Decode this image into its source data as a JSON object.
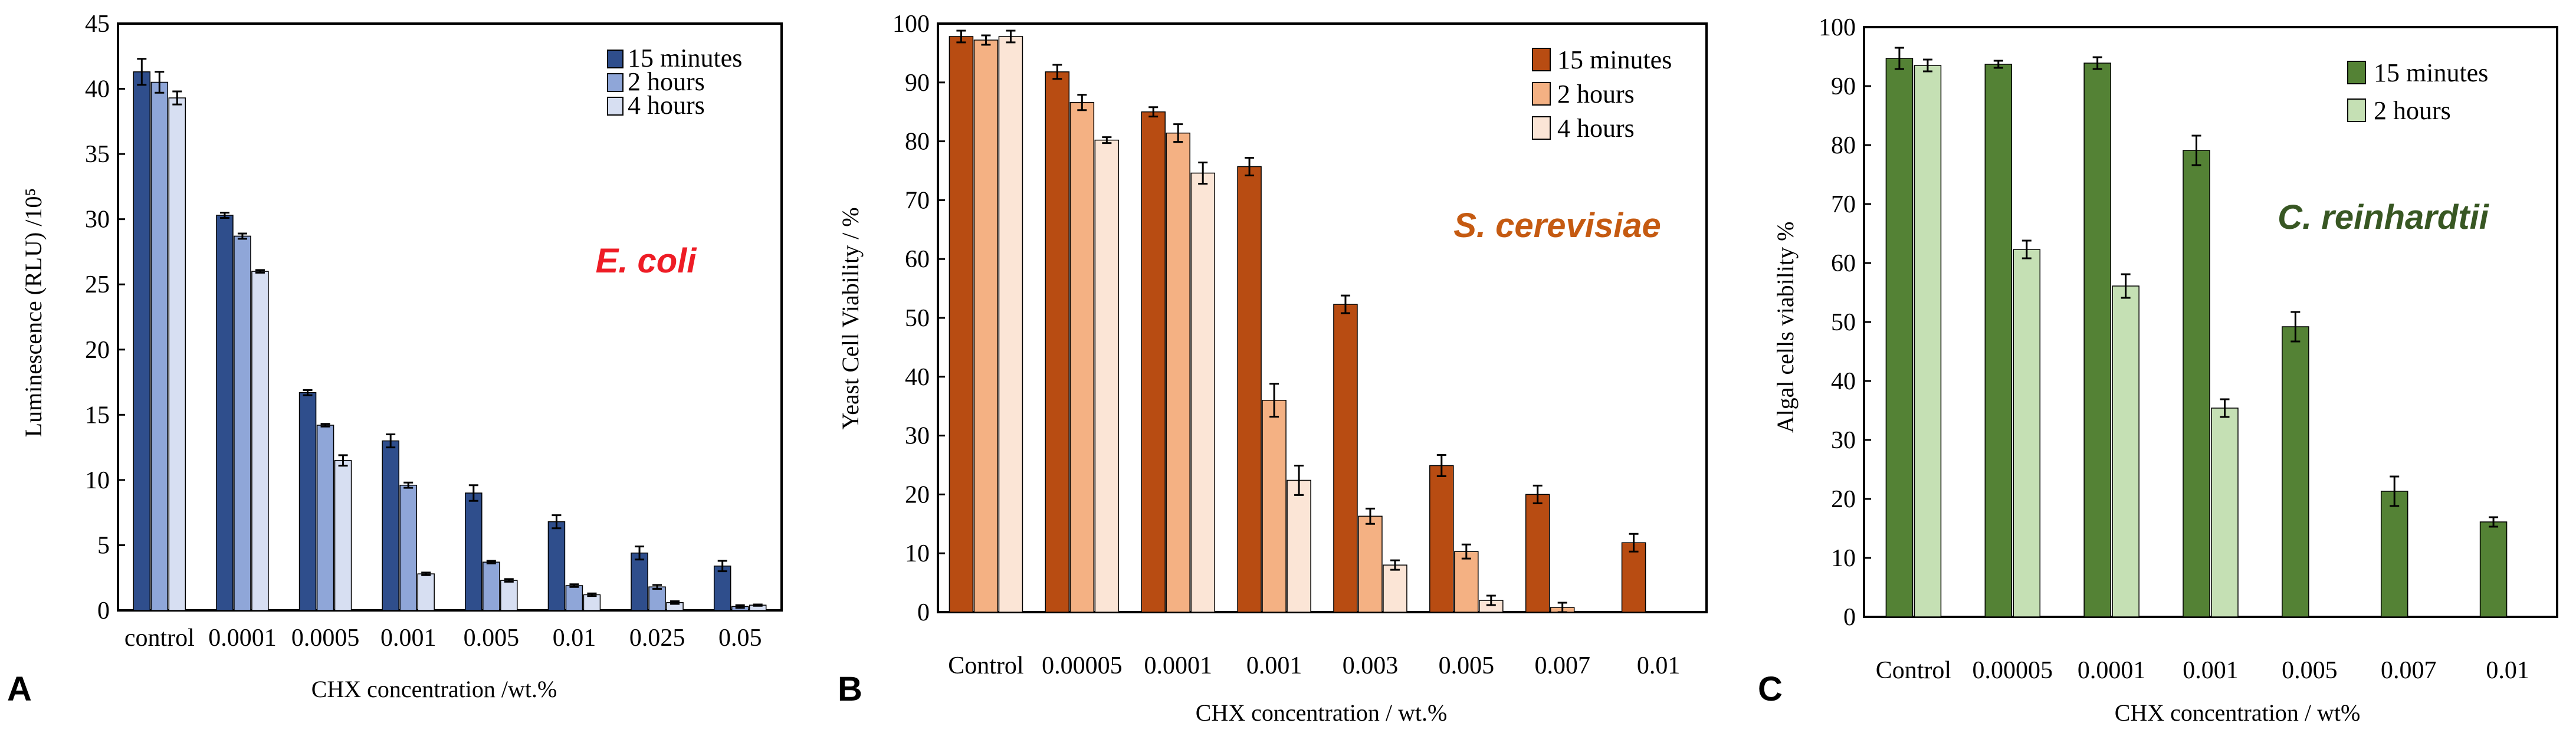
{
  "chart_data": [
    {
      "type": "bar",
      "panel_label": "A",
      "organism": "E. coli",
      "organism_color": "#ee1c25",
      "xlabel": "CHX concentration /wt.%",
      "ylabel": "Luminescence (RLU) /10⁵",
      "ylim": [
        0,
        45
      ],
      "ytick_step": 5,
      "categories": [
        "control",
        "0.0001",
        "0.0005",
        "0.001",
        "0.005",
        "0.01",
        "0.025",
        "0.05"
      ],
      "series": [
        {
          "name": "15 minutes",
          "color": "#2f4e8c",
          "values": [
            41.3,
            30.3,
            16.7,
            13.0,
            9.0,
            6.8,
            4.4,
            3.4
          ],
          "errors": [
            1.0,
            0.2,
            0.2,
            0.5,
            0.6,
            0.5,
            0.5,
            0.4
          ]
        },
        {
          "name": "2 hours",
          "color": "#8fa6d8",
          "values": [
            40.5,
            28.7,
            14.2,
            9.6,
            3.7,
            1.9,
            1.8,
            0.3
          ],
          "errors": [
            0.8,
            0.2,
            0.1,
            0.2,
            0.1,
            0.1,
            0.15,
            0.1
          ]
        },
        {
          "name": "4 hours",
          "color": "#d7dff2",
          "values": [
            39.3,
            26.0,
            11.5,
            2.8,
            2.3,
            1.2,
            0.6,
            0.4
          ],
          "errors": [
            0.5,
            0.1,
            0.4,
            0.1,
            0.1,
            0.1,
            0.1,
            0.05
          ]
        }
      ]
    },
    {
      "type": "bar",
      "panel_label": "B",
      "organism": "S. cerevisiae",
      "organism_color": "#c55a11",
      "xlabel": "CHX concentration / wt.%",
      "ylabel": "Yeast Cell Viability / %",
      "ylim": [
        0,
        100
      ],
      "ytick_step": 10,
      "categories": [
        "Control",
        "0.00005",
        "0.0001",
        "0.001",
        "0.003",
        "0.005",
        "0.007",
        "0.01"
      ],
      "series": [
        {
          "name": "15 minutes",
          "color": "#b84c12",
          "values": [
            97.8,
            91.8,
            85.0,
            75.7,
            52.3,
            24.9,
            20.0,
            11.8
          ],
          "errors": [
            1.0,
            1.2,
            0.8,
            1.5,
            1.5,
            1.8,
            1.5,
            1.5
          ]
        },
        {
          "name": "2 hours",
          "color": "#f4b183",
          "values": [
            97.2,
            86.6,
            81.4,
            36.0,
            16.3,
            10.3,
            0.8,
            0.0
          ],
          "errors": [
            0.8,
            1.3,
            1.5,
            2.8,
            1.3,
            1.2,
            0.8,
            0.0
          ]
        },
        {
          "name": "4 hours",
          "color": "#fbe5d6",
          "values": [
            97.8,
            80.2,
            74.6,
            22.4,
            8.0,
            2.0,
            0.0,
            0.0
          ],
          "errors": [
            1.0,
            0.5,
            1.8,
            2.5,
            0.8,
            0.8,
            0.0,
            0.0
          ]
        }
      ]
    },
    {
      "type": "bar",
      "panel_label": "C",
      "organism": "C. reinhardtii",
      "organism_color": "#385723",
      "xlabel": "CHX concentration  /  wt%",
      "ylabel": "Algal cells viability %",
      "ylim": [
        0,
        100
      ],
      "ytick_step": 10,
      "categories": [
        "Control",
        "0.00005",
        "0.0001",
        "0.001",
        "0.005",
        "0.007",
        "0.01"
      ],
      "series": [
        {
          "name": "15 minutes",
          "color": "#548235",
          "values": [
            94.7,
            93.7,
            93.9,
            79.1,
            49.2,
            21.3,
            16.1
          ],
          "errors": [
            1.8,
            0.6,
            1.0,
            2.5,
            2.5,
            2.5,
            0.8
          ]
        },
        {
          "name": "2 hours",
          "color": "#c5e0b4",
          "values": [
            93.5,
            62.3,
            56.1,
            35.4,
            0.0,
            0.0,
            0.0
          ],
          "errors": [
            1.0,
            1.5,
            2.0,
            1.5,
            0.0,
            0.0,
            0.0
          ]
        }
      ]
    }
  ]
}
